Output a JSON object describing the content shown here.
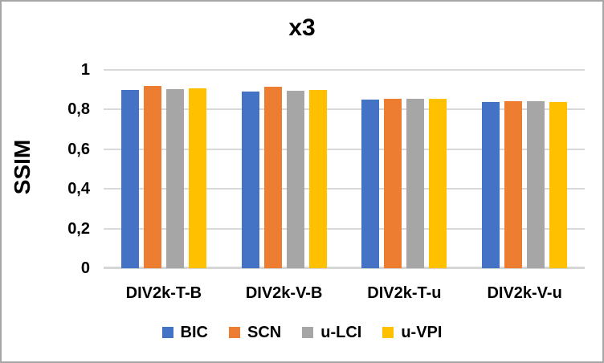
{
  "chart_data": {
    "type": "bar",
    "title": "x3",
    "xlabel": "",
    "ylabel": "SSIM",
    "categories": [
      "DIV2k-T-B",
      "DIV2k-V-B",
      "DIV2k-T-u",
      "DIV2k-V-u"
    ],
    "series": [
      {
        "name": "BIC",
        "color": "#4472C4",
        "values": [
          0.898,
          0.891,
          0.85,
          0.838
        ]
      },
      {
        "name": "SCN",
        "color": "#ED7D31",
        "values": [
          0.921,
          0.915,
          0.854,
          0.842
        ]
      },
      {
        "name": "u-LCI",
        "color": "#A6A6A6",
        "values": [
          0.904,
          0.896,
          0.854,
          0.842
        ]
      },
      {
        "name": "u-VPI",
        "color": "#FFC000",
        "values": [
          0.908,
          0.899,
          0.853,
          0.838
        ]
      }
    ],
    "ylim": [
      0,
      1
    ],
    "yticks": [
      0,
      0.2,
      0.4,
      0.6,
      0.8,
      1
    ],
    "ytick_labels": [
      "0",
      "0,2",
      "0,4",
      "0,6",
      "0,8",
      "1"
    ],
    "decimal_separator": ",",
    "grid": true,
    "gridline_color": "#D9D9D9",
    "legend_position": "bottom"
  }
}
